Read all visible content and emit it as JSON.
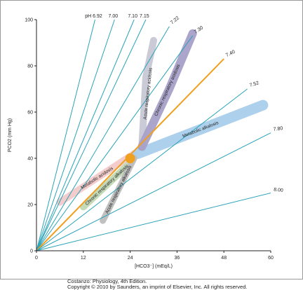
{
  "chart_data": {
    "type": "line",
    "xlabel": "[HCO3⁻] (mEq/L)",
    "ylabel": "PCO2 (mm Hg)",
    "xlim": [
      0,
      60
    ],
    "ylim": [
      0,
      100
    ],
    "x_ticks": [
      0,
      12,
      24,
      36,
      48,
      60
    ],
    "y_ticks": [
      0,
      20,
      40,
      60,
      80,
      100
    ],
    "grid": false,
    "series": [
      {
        "name": "pH 6.92",
        "color": "#2aa3b8",
        "x": [
          0,
          15
        ],
        "y": [
          0,
          100
        ]
      },
      {
        "name": "7.00",
        "color": "#2aa3b8",
        "x": [
          0,
          20
        ],
        "y": [
          0,
          100
        ]
      },
      {
        "name": "7.10",
        "color": "#2aa3b8",
        "x": [
          0,
          25
        ],
        "y": [
          0,
          100
        ]
      },
      {
        "name": "7.15",
        "color": "#2aa3b8",
        "x": [
          0,
          28
        ],
        "y": [
          0,
          100
        ]
      },
      {
        "name": "7.22",
        "color": "#2aa3b8",
        "x": [
          0,
          34
        ],
        "y": [
          0,
          97
        ]
      },
      {
        "name": "7.30",
        "color": "#2aa3b8",
        "x": [
          0,
          40
        ],
        "y": [
          0,
          93
        ]
      },
      {
        "name": "7.40",
        "color": "#f0a020",
        "x": [
          0,
          48
        ],
        "y": [
          0,
          83
        ]
      },
      {
        "name": "7.52",
        "color": "#2aa3b8",
        "x": [
          0,
          54
        ],
        "y": [
          0,
          70
        ]
      },
      {
        "name": "7.80",
        "color": "#2aa3b8",
        "x": [
          0,
          60
        ],
        "y": [
          0,
          51
        ]
      },
      {
        "name": "8.00",
        "color": "#2aa3b8",
        "x": [
          0,
          60
        ],
        "y": [
          0,
          25
        ]
      }
    ],
    "bands": [
      {
        "name": "Metabolic acidosis",
        "color": "#f2c9c9",
        "x": [
          6,
          25
        ],
        "y": [
          21,
          42
        ]
      },
      {
        "name": "Metabolic alkalosis",
        "color": "#a9cdeb",
        "x": [
          26,
          58
        ],
        "y": [
          42,
          63
        ]
      },
      {
        "name": "Acute respiratory acidosis",
        "color": "#c8c8d6",
        "x": [
          27,
          28,
          30
        ],
        "y": [
          45,
          75,
          91
        ]
      },
      {
        "name": "Chronic respiratory acidosis",
        "color": "#a6a0c8",
        "x": [
          27,
          34,
          40
        ],
        "y": [
          45,
          70,
          94
        ]
      },
      {
        "name": "Chronic respiratory alkalosis",
        "color": "#c2d8b4",
        "x": [
          12,
          24
        ],
        "y": [
          19,
          38
        ]
      },
      {
        "name": "Acute respiratory alkalosis",
        "color": "#bdbdbd",
        "x": [
          17,
          25
        ],
        "y": [
          13,
          40
        ]
      }
    ],
    "normal_point": {
      "x": 24,
      "y": 40,
      "color": "#f0a020"
    }
  },
  "credit": {
    "line1": "Costanzo: Physiology, 4th Edition.",
    "line2": "Copyright © 2010 by Saunders, an imprint of Elsevier, Inc. All rights reserved."
  }
}
